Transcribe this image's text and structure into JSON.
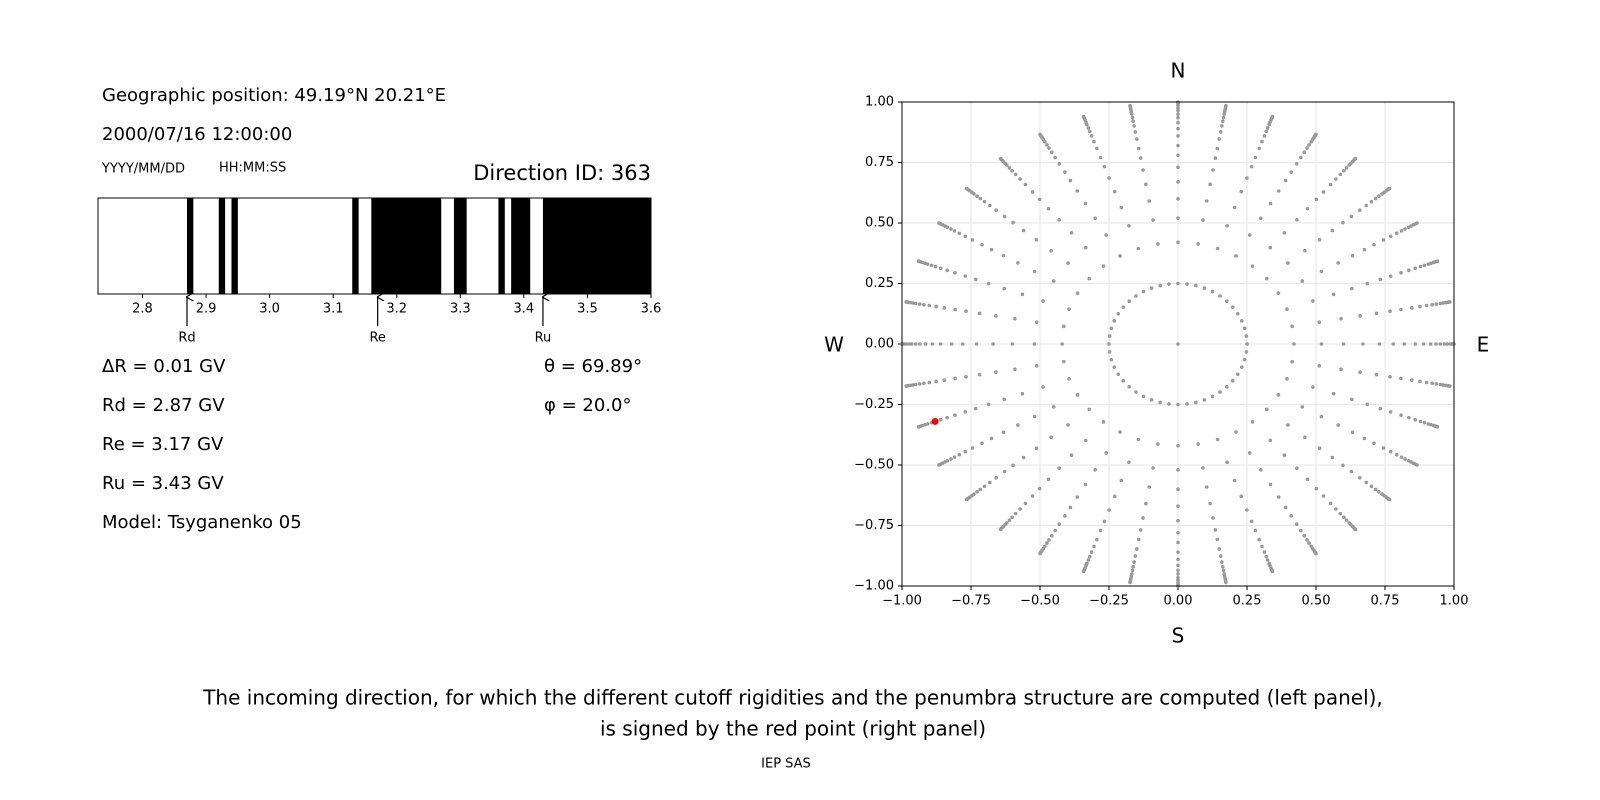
{
  "panel_text": {
    "position": "Geographic position: 49.19°N 20.21°E",
    "datetime": "2000/07/16 12:00:00",
    "date_format": "YYYY/MM/DD",
    "time_format": "HH:MM:SS",
    "direction_id": "Direction ID: 363",
    "delta_r": "ΔR = 0.01 GV",
    "theta": "θ = 69.89°",
    "phi": "φ = 20.0°",
    "model": "Model: Tsyganenko 05"
  },
  "chart_data": [
    {
      "type": "band",
      "xlim": [
        2.73,
        3.6
      ],
      "xticks": [
        2.8,
        2.9,
        {
          "value": 3,
          "label": "3.0"
        },
        3.1,
        3.2,
        3.3,
        3.4,
        3.5,
        3.6
      ],
      "color": "#000000",
      "bands": [
        [
          2.87,
          2.88
        ],
        [
          2.92,
          2.93
        ],
        [
          2.94,
          2.95
        ],
        [
          3.13,
          3.14
        ],
        [
          3.16,
          3.27
        ],
        [
          3.29,
          3.31
        ],
        [
          3.36,
          3.37
        ],
        [
          3.38,
          3.41
        ],
        [
          3.43,
          3.6
        ]
      ],
      "cutoffs": {
        "names": [
          "Rd",
          "Re",
          "Ru"
        ],
        "values": [
          2.87,
          3.17,
          3.43
        ],
        "value_labels": [
          "Rd = 2.87 GV",
          "Re = 3.17 GV",
          "Ru = 3.43 GV"
        ]
      }
    },
    {
      "type": "scatter",
      "xlim": [
        -1,
        1
      ],
      "ylim": [
        -1,
        1
      ],
      "xticks": [
        {
          "value": -1,
          "label": "−1.00"
        },
        {
          "value": -0.75,
          "label": "−0.75"
        },
        {
          "value": -0.5,
          "label": "−0.50"
        },
        {
          "value": -0.25,
          "label": "−0.25"
        },
        {
          "value": 0,
          "label": "0.00"
        },
        {
          "value": 0.25,
          "label": "0.25"
        },
        {
          "value": 0.5,
          "label": "0.50"
        },
        {
          "value": 0.75,
          "label": "0.75"
        },
        {
          "value": 1,
          "label": "1.00"
        }
      ],
      "yticks": [
        {
          "value": -1,
          "label": "−1.00"
        },
        {
          "value": -0.75,
          "label": "−0.75"
        },
        {
          "value": -0.5,
          "label": "−0.50"
        },
        {
          "value": -0.25,
          "label": "−0.25"
        },
        {
          "value": 0,
          "label": "0.00"
        },
        {
          "value": 0.25,
          "label": "0.25"
        },
        {
          "value": 0.5,
          "label": "0.50"
        },
        {
          "value": 0.75,
          "label": "0.75"
        },
        {
          "value": 1,
          "label": "1.00"
        }
      ],
      "grid": true,
      "compass": {
        "top": "N",
        "bottom": "S",
        "left": "W",
        "right": "E"
      },
      "grid_points": {
        "color": "#999999",
        "center": {
          "x": 0,
          "y": 0
        },
        "ring_radius": 0.25,
        "ring_angles": [
          0,
          7.5,
          15,
          22.5,
          30,
          37.5,
          45,
          52.5,
          60,
          67.5,
          75,
          82.5,
          90,
          97.5,
          105,
          112.5,
          120,
          127.5,
          135,
          142.5,
          150,
          157.5,
          165,
          172.5,
          180,
          187.5,
          195,
          202.5,
          210,
          217.5,
          225,
          232.5,
          240,
          247.5,
          255,
          262.5,
          270,
          277.5,
          285,
          292.5,
          300,
          307.5,
          315,
          322.5,
          330,
          337.5,
          345,
          352.5
        ],
        "spoke_angles": [
          0,
          10,
          20,
          30,
          40,
          50,
          60,
          70,
          80,
          90,
          100,
          110,
          120,
          130,
          140,
          150,
          160,
          170,
          180,
          190,
          200,
          210,
          220,
          230,
          240,
          250,
          260,
          270,
          280,
          290,
          300,
          310,
          320,
          330,
          340,
          350
        ],
        "spoke_radii": [
          0.42,
          0.52,
          0.6,
          0.67,
          0.73,
          0.78,
          0.82,
          0.86,
          0.89,
          0.915,
          0.935,
          0.95,
          0.965,
          0.975,
          0.985,
          0.992,
          0.997,
          1.0
        ]
      },
      "selected": {
        "color": "#ff0000",
        "x": -0.88,
        "y": -0.32
      }
    }
  ],
  "caption": {
    "lines": [
      "The incoming direction, for which the different cutoff rigidities and the penumbra structure are computed (left panel),",
      "is signed by the red point (right panel)"
    ],
    "footer": "IEP SAS"
  }
}
